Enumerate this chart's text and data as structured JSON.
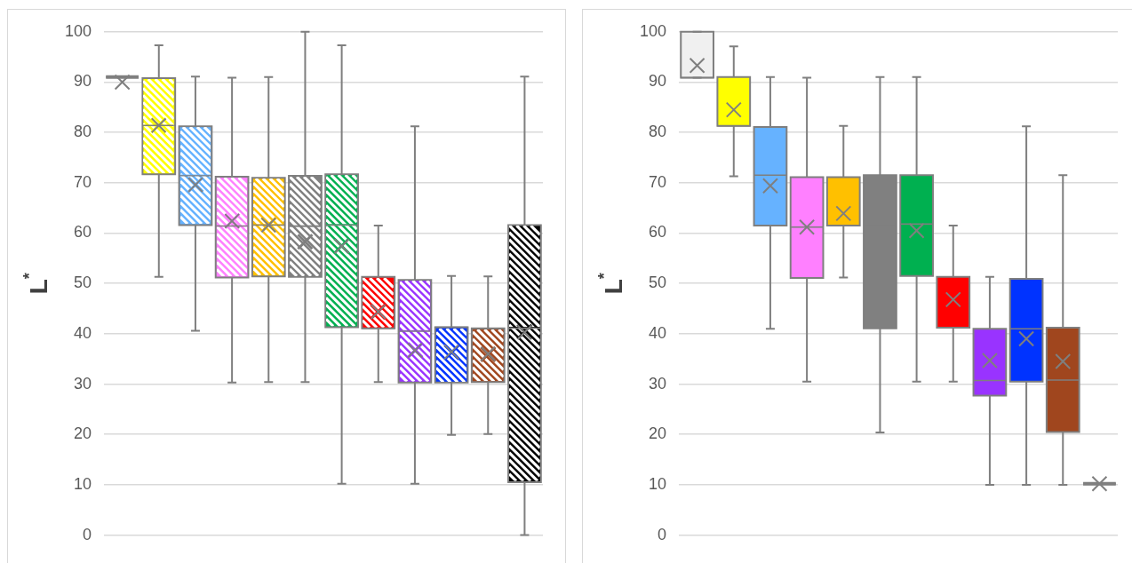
{
  "chart_data": [
    {
      "type": "box",
      "ylabel": "L$^{*}$",
      "categories": [
        null,
        null,
        null,
        null,
        null,
        null,
        null,
        null,
        null,
        null,
        null,
        null
      ],
      "colors": [
        "#7f7f7f",
        "#ffff00",
        "#66b2ff",
        "#ff80ff",
        "#ffc000",
        "#808080",
        "#00b050",
        "#ff0000",
        "#9933ff",
        "#0033ff",
        "#a0461e",
        "#000000"
      ],
      "boxes": [
        {
          "low": 91,
          "q1": 91,
          "median": 91,
          "q3": 91,
          "high": 91,
          "mean": 90
        },
        {
          "low": 51.3,
          "q1": 71.7,
          "median": 81.4,
          "q3": 90.8,
          "high": 97.3,
          "mean": 81.4
        },
        {
          "low": 40.6,
          "q1": 61.6,
          "median": 71.4,
          "q3": 81.2,
          "high": 91.1,
          "mean": 69.6
        },
        {
          "low": 30.3,
          "q1": 51.2,
          "median": 61.4,
          "q3": 71.2,
          "high": 90.9,
          "mean": 62.4
        },
        {
          "low": 30.4,
          "q1": 51.4,
          "median": 61.6,
          "q3": 71,
          "high": 91,
          "mean": 61.6
        },
        {
          "low": 30.4,
          "q1": 51.3,
          "median": 61.4,
          "q3": 71.4,
          "high": 100,
          "mean": 58.3
        },
        {
          "low": 10.2,
          "q1": 41.3,
          "median": 61.6,
          "q3": 71.7,
          "high": 97.3,
          "mean": 57.4
        },
        {
          "low": 30.4,
          "q1": 41.1,
          "median": 41.1,
          "q3": 51.3,
          "high": 61.5,
          "mean": 44.4
        },
        {
          "low": 10.2,
          "q1": 30.3,
          "median": 40.5,
          "q3": 50.7,
          "high": 81.2,
          "mean": 36.7
        },
        {
          "low": 19.9,
          "q1": 30.3,
          "median": 41.3,
          "q3": 41.3,
          "high": 51.5,
          "mean": 36.4
        },
        {
          "low": 20.1,
          "q1": 30.4,
          "median": 41.1,
          "q3": 41.1,
          "high": 51.4,
          "mean": 36
        },
        {
          "low": 0,
          "q1": 10.5,
          "median": 41.1,
          "q3": 61.6,
          "high": 91.1,
          "mean": 40.3
        }
      ],
      "ylim": [
        0,
        100
      ],
      "yticks": [
        0,
        10,
        20,
        30,
        40,
        50,
        60,
        70,
        80,
        90,
        100
      ],
      "grid": "y",
      "legend": false
    },
    {
      "type": "box",
      "ylabel": "L$^{*}$",
      "categories": [
        null,
        null,
        null,
        null,
        null,
        null,
        null,
        null,
        null,
        null,
        null,
        null
      ],
      "colors": [
        "#f0f0f0",
        "#ffff00",
        "#66b2ff",
        "#ff80ff",
        "#ffc000",
        "#808080",
        "#00b050",
        "#ff0000",
        "#9933ff",
        "#0033ff",
        "#a0461e",
        "#7f7f7f"
      ],
      "boxes": [
        {
          "low": 90.9,
          "q1": 90.9,
          "median": 90.9,
          "q3": 100,
          "high": 100,
          "mean": 93.3
        },
        {
          "low": 71.3,
          "q1": 81.3,
          "median": 81.3,
          "q3": 91,
          "high": 97.1,
          "mean": 84.5
        },
        {
          "low": 41,
          "q1": 61.5,
          "median": 71.5,
          "q3": 81.1,
          "high": 91,
          "mean": 69.4
        },
        {
          "low": 30.5,
          "q1": 51.1,
          "median": 61.2,
          "q3": 71.1,
          "high": 90.9,
          "mean": 61.2
        },
        {
          "low": 51.2,
          "q1": 61.5,
          "median": 61.5,
          "q3": 71.1,
          "high": 81.3,
          "mean": 63.9
        },
        {
          "low": 20.4,
          "q1": 41.1,
          "median": 61.5,
          "q3": 71.5,
          "high": 91
        },
        {
          "low": 30.5,
          "q1": 51.5,
          "median": 61.8,
          "q3": 71.5,
          "high": 91,
          "mean": 60.5
        },
        {
          "low": 30.5,
          "q1": 41.2,
          "median": 41.2,
          "q3": 51.3,
          "high": 61.5,
          "mean": 46.8
        },
        {
          "low": 10,
          "q1": 27.7,
          "median": 30.7,
          "q3": 41,
          "high": 51.3,
          "mean": 34.7
        },
        {
          "low": 10,
          "q1": 30.5,
          "median": 41,
          "q3": 50.9,
          "high": 81.2,
          "mean": 39
        },
        {
          "low": 10,
          "q1": 20.5,
          "median": 30.8,
          "q3": 41.2,
          "high": 71.5,
          "mean": 34.5
        },
        {
          "low": 10.2,
          "q1": 10.2,
          "median": 10.2,
          "q3": 10.2,
          "high": 10.2,
          "mean": 10.2
        }
      ],
      "ylim": [
        0,
        100
      ],
      "yticks": [
        0,
        10,
        20,
        30,
        40,
        50,
        60,
        70,
        80,
        90,
        100
      ],
      "grid": "y",
      "legend": false
    }
  ]
}
